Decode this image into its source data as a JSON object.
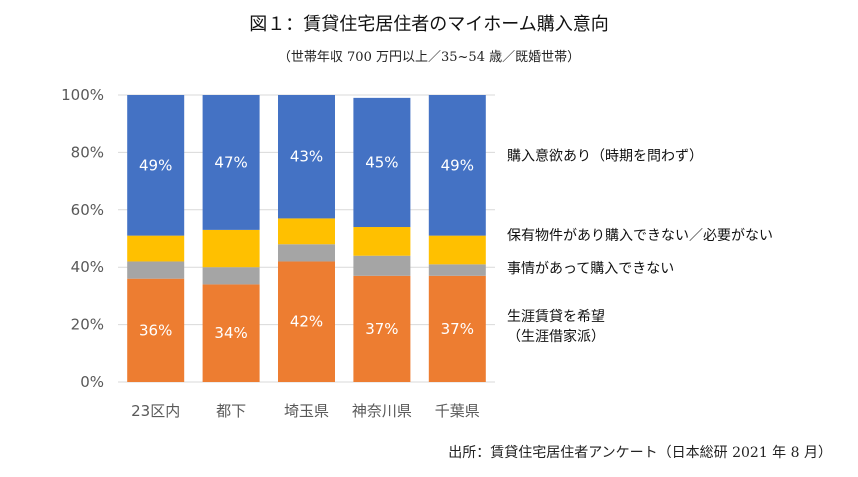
{
  "title": "図１：賃貸住宅居住者のマイホーム購入意向",
  "subtitle": "（世帯年収 700 万円以上／35~54 歳／既婚世帯）",
  "source": "出所：賃貸住宅居住者アンケート（日本総研 2021 年 8 月）",
  "chart_data": {
    "type": "bar",
    "stacked": true,
    "categories": [
      "23区内",
      "都下",
      "埼玉県",
      "神奈川県",
      "千葉県"
    ],
    "ylim": [
      0,
      100
    ],
    "y_ticks": [
      "0%",
      "20%",
      "40%",
      "60%",
      "80%",
      "100%"
    ],
    "grid": true,
    "legend_position": "right",
    "series": [
      {
        "name": "生涯賃貸を希望（生涯借家派）",
        "name_lines": [
          "生涯賃貸を希望",
          "（生涯借家派）"
        ],
        "color": "#ED7D31",
        "values": [
          36,
          34,
          42,
          37,
          37
        ],
        "labels": [
          "36%",
          "34%",
          "42%",
          "37%",
          "37%"
        ]
      },
      {
        "name": "事情があって購入できない",
        "name_lines": [
          "事情があって購入できない"
        ],
        "color": "#A5A5A5",
        "values": [
          6,
          6,
          6,
          7,
          4
        ],
        "labels": [
          "",
          "",
          "",
          "",
          ""
        ]
      },
      {
        "name": "保有物件があり購入できない／必要がない",
        "name_lines": [
          "保有物件があり購入できない／必要がない"
        ],
        "color": "#FFC000",
        "values": [
          9,
          13,
          9,
          10,
          10
        ],
        "labels": [
          "",
          "",
          "",
          "",
          ""
        ]
      },
      {
        "name": "購入意欲あり（時期を問わず）",
        "name_lines": [
          "購入意欲あり（時期を問わず）"
        ],
        "color": "#4472C4",
        "values": [
          49,
          47,
          43,
          45,
          49
        ],
        "labels": [
          "49%",
          "47%",
          "43%",
          "45%",
          "49%"
        ]
      }
    ]
  }
}
